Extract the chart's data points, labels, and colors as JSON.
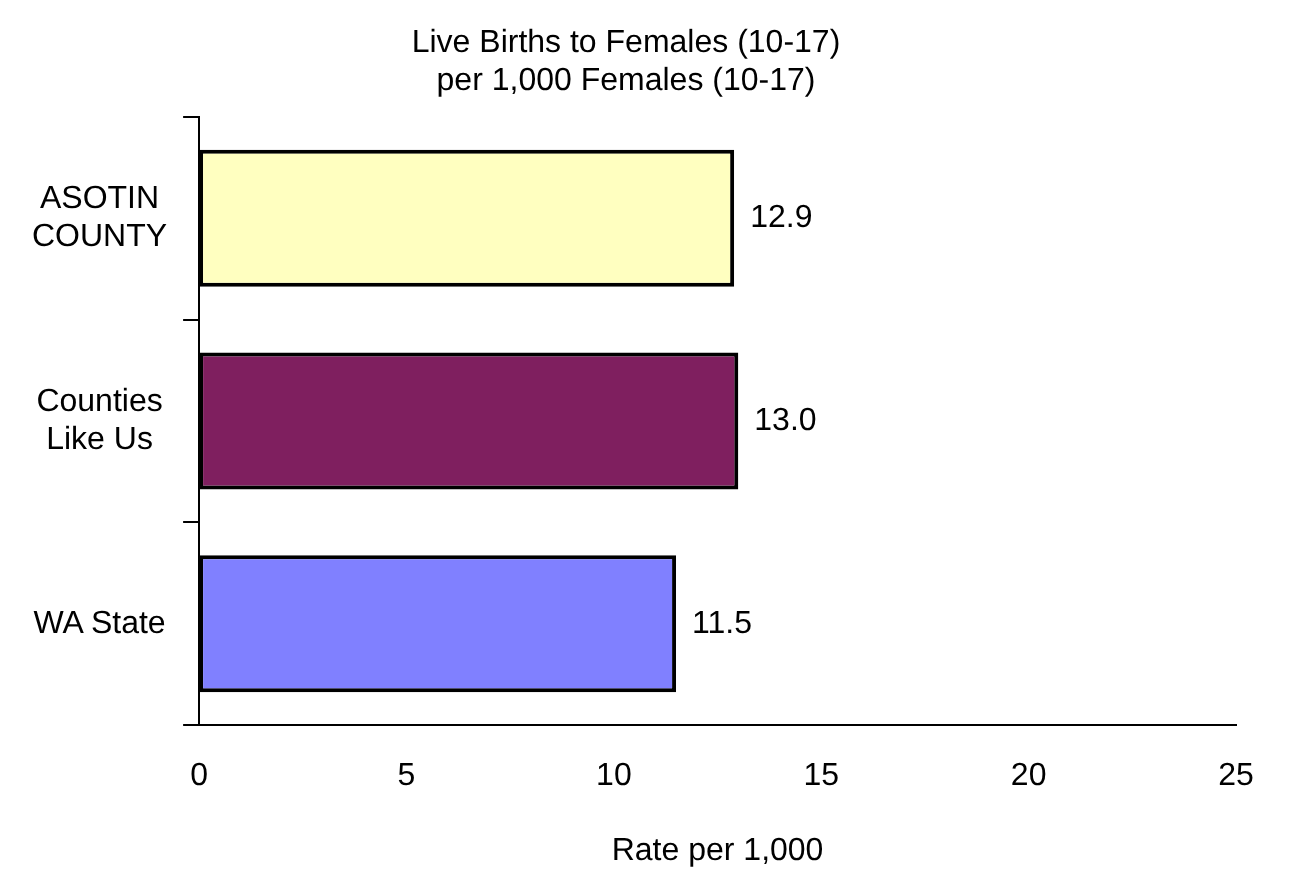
{
  "chart_data": {
    "type": "bar",
    "orientation": "horizontal",
    "title": "Live Births to Females (10-17)",
    "subtitle": "per 1,000 Females (10-17)",
    "xlabel": "Rate per 1,000",
    "categories": [
      "ASOTIN COUNTY",
      "Counties Like Us",
      "WA State"
    ],
    "values": [
      12.9,
      13.0,
      11.5
    ],
    "colors": [
      "#ffffc0",
      "#7f1f5f",
      "#8080ff"
    ],
    "value_labels": [
      "12.9",
      "13.0",
      "11.5"
    ],
    "xlim": [
      0,
      25
    ],
    "xticks": [
      0,
      5,
      10,
      15,
      20,
      25
    ],
    "grid": false,
    "legend": false
  }
}
